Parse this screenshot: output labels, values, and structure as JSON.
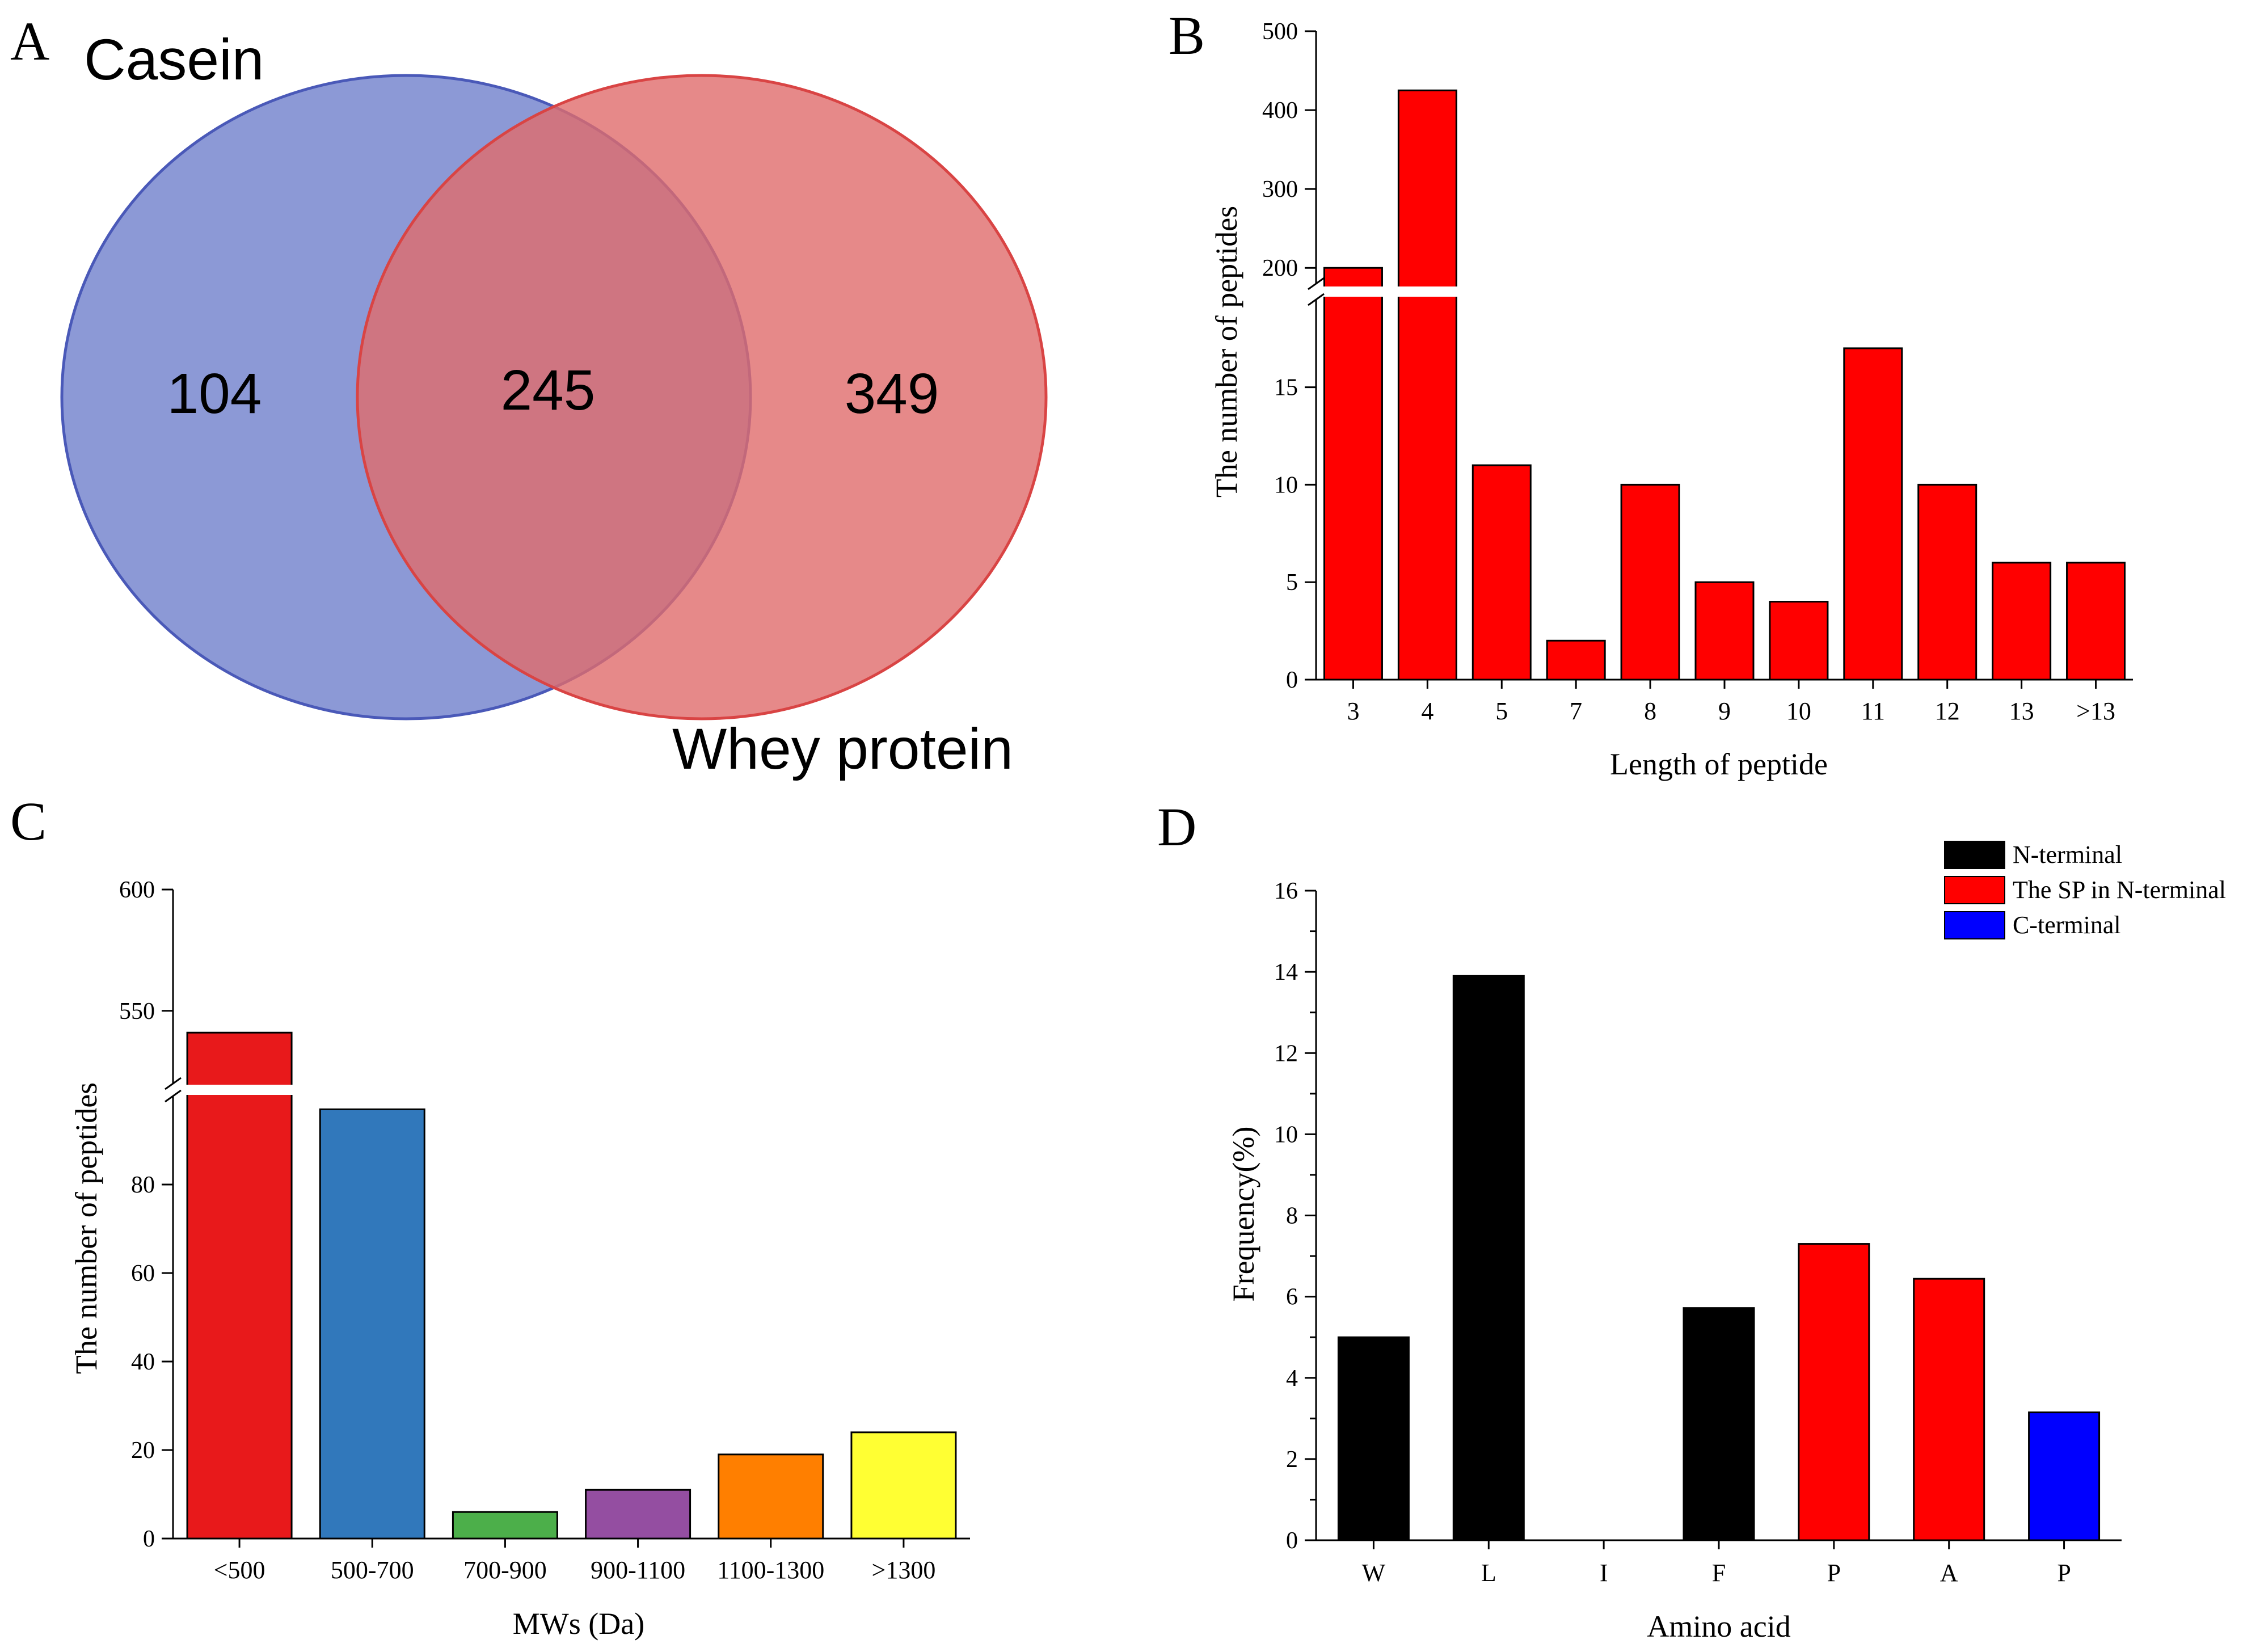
{
  "panel_labels": {
    "A": "A",
    "B": "B",
    "C": "C",
    "D": "D"
  },
  "chart_data": [
    {
      "panel": "A",
      "type": "venn",
      "sets": [
        {
          "name": "Casein",
          "only": "104",
          "color": "#6f7fcc"
        },
        {
          "name": "Whey protein",
          "only": "349",
          "color": "#e06b6b"
        }
      ],
      "intersection": "245"
    },
    {
      "panel": "B",
      "type": "bar",
      "categories": [
        "3",
        "4",
        "5",
        "7",
        "8",
        "9",
        "10",
        "11",
        "12",
        "13",
        ">13"
      ],
      "values": [
        200,
        425,
        11,
        2,
        10,
        5,
        4,
        17,
        10,
        6,
        6
      ],
      "bar_color": "#ff0000",
      "xlabel": "Length of peptide",
      "ylabel": "The number of peptides",
      "y_break": [
        19.5,
        180
      ],
      "ylim_lower": [
        0,
        19.5
      ],
      "ylim_upper": [
        180,
        500
      ],
      "yticks_lower": [
        "0",
        "5",
        "10",
        "15"
      ],
      "yticks_upper": [
        "200",
        "300",
        "400",
        "500"
      ]
    },
    {
      "panel": "C",
      "type": "bar",
      "categories": [
        "<500",
        "500-700",
        "700-900",
        "900-1100",
        "1100-1300",
        ">1300"
      ],
      "values": [
        541,
        97,
        6,
        11,
        19,
        24
      ],
      "colors": [
        "#e8191b",
        "#3178bb",
        "#4caf4a",
        "#944ea1",
        "#ff7f00",
        "#ffff33"
      ],
      "xlabel": "MWs (Da)",
      "ylabel": "The number of peptides",
      "y_break": [
        100,
        520
      ],
      "ylim_lower": [
        0,
        100
      ],
      "ylim_upper": [
        520,
        600
      ],
      "yticks_lower": [
        "0",
        "20",
        "40",
        "60",
        "80"
      ],
      "yticks_upper": [
        "550",
        "600"
      ]
    },
    {
      "panel": "D",
      "type": "bar",
      "categories": [
        "W",
        "L",
        "I",
        "F",
        "P",
        "A",
        "P"
      ],
      "values": [
        5.0,
        13.9,
        0,
        5.72,
        7.3,
        6.44,
        3.15
      ],
      "groups": [
        "N-terminal",
        "N-terminal",
        "N-terminal",
        "N-terminal",
        "The SP in N-terminal",
        "The SP in N-terminal",
        "C-terminal"
      ],
      "legend": [
        {
          "label": "N-terminal",
          "color": "#000000"
        },
        {
          "label": "The SP in N-terminal",
          "color": "#ff0000"
        },
        {
          "label": "C-terminal",
          "color": "#0000ff"
        }
      ],
      "xlabel": "Amino acid",
      "ylabel": "Frequency(%)",
      "ylim": [
        0,
        16
      ],
      "yticks": [
        "0",
        "2",
        "4",
        "6",
        "8",
        "10",
        "12",
        "14",
        "16"
      ]
    }
  ]
}
